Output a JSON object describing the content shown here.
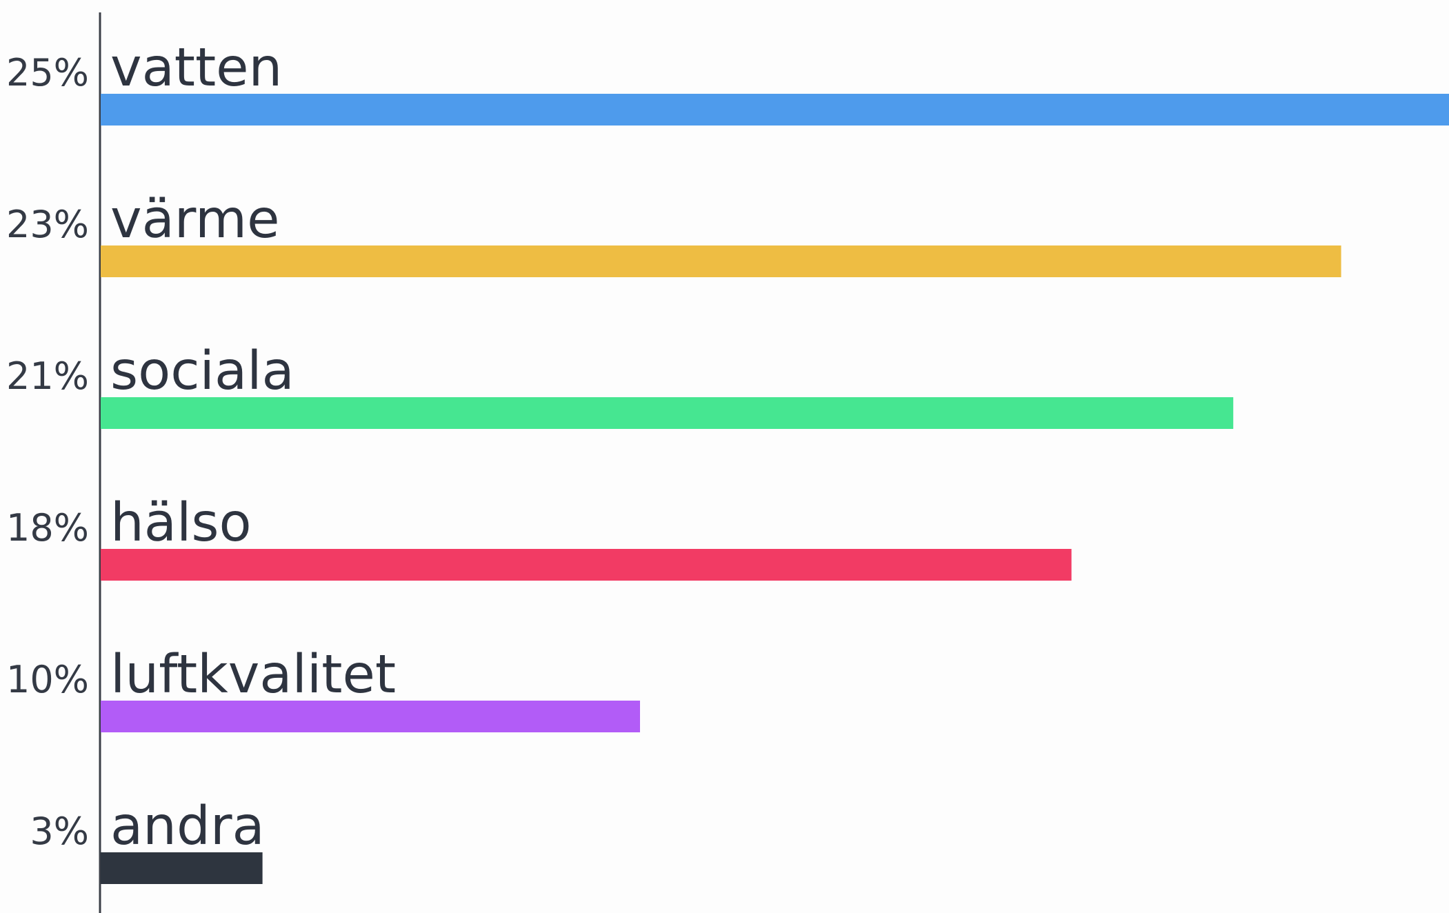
{
  "chart_data": {
    "type": "bar",
    "orientation": "horizontal",
    "categories": [
      "vatten",
      "värme",
      "sociala",
      "hälso",
      "luftkvalitet",
      "andra"
    ],
    "values": [
      25,
      23,
      21,
      18,
      10,
      3
    ],
    "value_labels": [
      "25%",
      "23%",
      "21%",
      "18%",
      "10%",
      "3%"
    ],
    "colors": [
      "#4e9bec",
      "#eebd43",
      "#46e691",
      "#f23b64",
      "#b25cf7",
      "#2e353f"
    ],
    "xlim": [
      0,
      25
    ],
    "grid": false,
    "legend": "none",
    "title": "",
    "xlabel": "",
    "ylabel": ""
  }
}
